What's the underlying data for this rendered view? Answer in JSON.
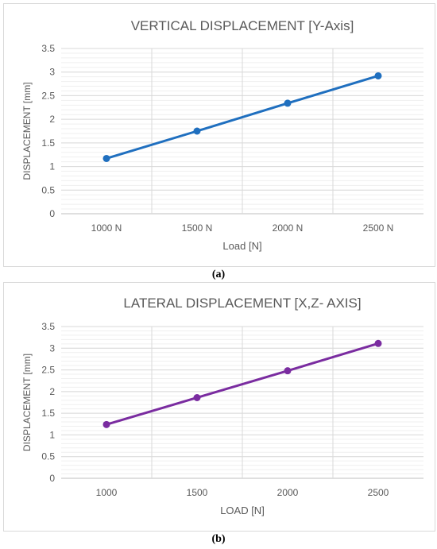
{
  "chart_data": [
    {
      "type": "line",
      "title": "VERTICAL DISPLACEMENT [Y-Axis]",
      "xlabel": "Load [N]",
      "ylabel": "DISPLACEMENT [mm]",
      "categories": [
        "1000 N",
        "1500 N",
        "2000 N",
        "2500 N"
      ],
      "series": [
        {
          "values": [
            1.17,
            1.75,
            2.34,
            2.92
          ],
          "color": "#1f6fbf"
        }
      ],
      "ylim": [
        0,
        3.5
      ],
      "yticks": [
        "0",
        "0.5",
        "1",
        "1.5",
        "2",
        "2.5",
        "3",
        "3.5"
      ],
      "grid": true,
      "legend": "none"
    },
    {
      "type": "line",
      "title": "LATERAL DISPLACEMENT [X,Z- AXIS]",
      "xlabel": "LOAD [N]",
      "ylabel": "DISPLACEMENT [mm]",
      "categories": [
        "1000",
        "1500",
        "2000",
        "2500"
      ],
      "series": [
        {
          "values": [
            1.24,
            1.86,
            2.48,
            3.11
          ],
          "color": "#7a2ca0"
        }
      ],
      "ylim": [
        0,
        3.5
      ],
      "yticks": [
        "0",
        "0.5",
        "1",
        "1.5",
        "2",
        "2.5",
        "3",
        "3.5"
      ],
      "grid": true,
      "legend": "none"
    }
  ],
  "captions": [
    "(a)",
    "(b)"
  ]
}
